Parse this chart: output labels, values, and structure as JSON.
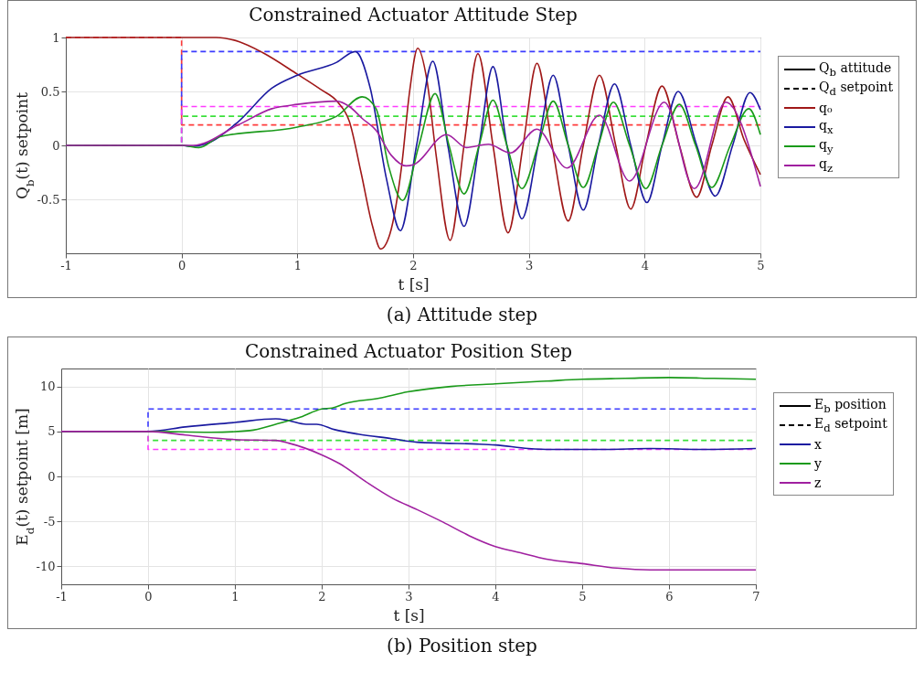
{
  "chart_data": [
    {
      "type": "line",
      "title": "Constrained Actuator Attitude Step",
      "xlabel": "t [s]",
      "ylabel": "Q$_{b}$(t) setpoint",
      "annotations": [
        "(a) Attitude step",
        "Q$_{b}$ attitude",
        "Q$_{d}$ setpoint"
      ],
      "xlim": [
        -1,
        5
      ],
      "xticks": [
        -1,
        0,
        1,
        2,
        3,
        4,
        5
      ],
      "ylim": [
        -1,
        1
      ],
      "yticks": [
        -0.5,
        0,
        0.5,
        1
      ],
      "grid": true,
      "legend": "right",
      "line_style": "solid",
      "series": [
        {
          "type": "step",
          "line_style": "dashed",
          "color": "#ff3b3b",
          "x": [
            -1,
            0,
            5
          ],
          "values": [
            1,
            0.19,
            0.19
          ]
        },
        {
          "type": "step",
          "line_style": "dashed",
          "color": "#3b3bff",
          "x": [
            -1,
            0,
            5
          ],
          "values": [
            0,
            0.87,
            0.87
          ]
        },
        {
          "type": "step",
          "line_style": "dashed",
          "color": "#3be03b",
          "x": [
            -1,
            0,
            5
          ],
          "values": [
            0,
            0.27,
            0.27
          ]
        },
        {
          "type": "step",
          "line_style": "dashed",
          "color": "#ff3bff",
          "x": [
            -1,
            0,
            5
          ],
          "values": [
            0,
            0.36,
            0.36
          ]
        },
        {
          "name": "q₀",
          "color": "#a01818",
          "x": [
            -1,
            0,
            0.3,
            0.5,
            0.7,
            1.0,
            1.2,
            1.35,
            1.45,
            1.55,
            1.65,
            1.72,
            1.8,
            1.9,
            1.97,
            2.04,
            2.12,
            2.2,
            2.32,
            2.44,
            2.56,
            2.69,
            2.82,
            2.95,
            3.07,
            3.2,
            3.34,
            3.47,
            3.61,
            3.75,
            3.88,
            4.01,
            4.15,
            4.3,
            4.45,
            4.58,
            4.72,
            4.86,
            5
          ],
          "values": [
            1,
            1,
            1,
            0.96,
            0.86,
            0.66,
            0.52,
            0.4,
            0.22,
            -0.25,
            -0.75,
            -0.96,
            -0.82,
            -0.2,
            0.5,
            0.9,
            0.6,
            -0.1,
            -0.88,
            0,
            0.85,
            0,
            -0.81,
            0,
            0.76,
            0,
            -0.7,
            0,
            0.65,
            0,
            -0.59,
            0,
            0.55,
            0,
            -0.48,
            0,
            0.45,
            0.05,
            -0.27
          ]
        },
        {
          "name": "q$_{x}$",
          "color": "#1a1aa0",
          "x": [
            -1,
            0,
            0.1,
            0.2,
            0.49,
            0.78,
            1.0,
            1.34,
            1.5,
            1.63,
            1.77,
            1.89,
            2.03,
            2.17,
            2.3,
            2.44,
            2.57,
            2.69,
            2.81,
            2.94,
            3.08,
            3.21,
            3.34,
            3.47,
            3.6,
            3.74,
            3.88,
            4.02,
            4.15,
            4.29,
            4.45,
            4.61,
            4.76,
            4.91,
            5
          ],
          "values": [
            0,
            0,
            -0.01,
            0.01,
            0.22,
            0.53,
            0.65,
            0.77,
            0.87,
            0.53,
            -0.31,
            -0.79,
            0,
            0.78,
            0,
            -0.75,
            0,
            0.73,
            0,
            -0.68,
            0,
            0.65,
            0,
            -0.6,
            0,
            0.57,
            0,
            -0.53,
            0,
            0.5,
            0,
            -0.47,
            0,
            0.49,
            0.33
          ]
        },
        {
          "name": "q$_{y}$",
          "color": "#1a9a1a",
          "x": [
            -1,
            0,
            0.15,
            0.33,
            1.0,
            1.34,
            1.56,
            1.68,
            1.79,
            1.91,
            2.05,
            2.19,
            2.31,
            2.44,
            2.57,
            2.69,
            2.81,
            2.94,
            3.08,
            3.21,
            3.34,
            3.47,
            3.6,
            3.73,
            3.87,
            4.01,
            4.15,
            4.3,
            4.44,
            4.58,
            4.74,
            4.9,
            5
          ],
          "values": [
            0,
            0,
            -0.02,
            0.08,
            0.17,
            0.27,
            0.45,
            0.34,
            -0.2,
            -0.51,
            0,
            0.48,
            0,
            -0.45,
            0,
            0.42,
            0,
            -0.4,
            0,
            0.41,
            0,
            -0.39,
            0,
            0.4,
            0,
            -0.4,
            0,
            0.38,
            0,
            -0.39,
            0,
            0.34,
            0.1
          ]
        },
        {
          "name": "q$_{z}$",
          "color": "#a020a0",
          "x": [
            -1,
            0,
            0.1,
            0.49,
            0.78,
            1.0,
            1.34,
            1.45,
            1.56,
            1.68,
            1.81,
            1.94,
            2.0,
            2.29,
            2.46,
            2.65,
            2.84,
            3.07,
            3.33,
            3.61,
            3.87,
            4.17,
            4.43,
            4.7,
            5
          ],
          "values": [
            0,
            0,
            0,
            0.19,
            0.34,
            0.38,
            0.41,
            0.36,
            0.25,
            0.14,
            -0.09,
            -0.19,
            -0.18,
            0.1,
            -0.02,
            0.01,
            -0.07,
            0.15,
            -0.21,
            0.28,
            -0.33,
            0.4,
            -0.4,
            0.4,
            -0.38
          ]
        }
      ]
    },
    {
      "type": "line",
      "title": "Constrained Actuator Position Step",
      "xlabel": "t [s]",
      "ylabel": "E$_{d}$(t) setpoint [m]",
      "annotations": [
        "(b) Position step",
        "E$_{b}$ position",
        "E$_{d}$ setpoint"
      ],
      "xlim": [
        -1,
        7
      ],
      "xticks": [
        -1,
        0,
        1,
        2,
        3,
        4,
        5,
        6,
        7
      ],
      "ylim": [
        -12,
        12
      ],
      "yticks": [
        -10,
        -5,
        0,
        5,
        10
      ],
      "grid": true,
      "legend": "right",
      "line_style": "solid",
      "series": [
        {
          "type": "step",
          "line_style": "dashed",
          "color": "#3b3bff",
          "x": [
            -1,
            0,
            7
          ],
          "values": [
            5,
            7.5,
            7.5
          ]
        },
        {
          "type": "step",
          "line_style": "dashed",
          "color": "#3be03b",
          "x": [
            -1,
            0,
            7
          ],
          "values": [
            5,
            4,
            4
          ]
        },
        {
          "type": "step",
          "line_style": "dashed",
          "color": "#ff3bff",
          "x": [
            -1,
            0,
            7
          ],
          "values": [
            5,
            3,
            3
          ]
        },
        {
          "name": "x",
          "color": "#1a1aa0",
          "x": [
            -1,
            0,
            0.43,
            1.0,
            1.47,
            1.62,
            1.82,
            1.94,
            2.15,
            2.42,
            2.81,
            3.1,
            3.4,
            3.79,
            4.0,
            4.38,
            4.65,
            4.98,
            5.27,
            5.78,
            6.4,
            7
          ],
          "values": [
            5,
            5,
            5.5,
            6,
            6.4,
            6.2,
            5.8,
            5.8,
            5.2,
            4.7,
            4.2,
            3.8,
            3.7,
            3.6,
            3.5,
            3.1,
            3,
            3,
            3,
            3.1,
            3,
            3.1
          ]
        },
        {
          "name": "y",
          "color": "#1a9a1a",
          "x": [
            -1,
            0,
            0.72,
            1.17,
            1.47,
            1.76,
            2.0,
            2.12,
            2.27,
            2.66,
            2.99,
            3.49,
            4.0,
            4.59,
            5.0,
            5.49,
            6.0,
            6.52,
            7
          ],
          "values": [
            5,
            5,
            4.9,
            5.1,
            5.8,
            6.6,
            7.5,
            7.6,
            8.1,
            8.7,
            9.4,
            10,
            10.3,
            10.6,
            10.8,
            10.9,
            11,
            10.9,
            10.8
          ]
        },
        {
          "name": "z",
          "color": "#a020a0",
          "x": [
            -1,
            0,
            0.43,
            1.0,
            1.47,
            1.62,
            2.0,
            2.21,
            2.51,
            2.81,
            3.1,
            3.4,
            3.7,
            4.0,
            4.29,
            4.59,
            5.0,
            5.4,
            5.78,
            6.0,
            7
          ],
          "values": [
            5,
            5,
            4.6,
            4.1,
            4,
            3.7,
            2.4,
            1.4,
            -0.6,
            -2.4,
            -3.7,
            -5.1,
            -6.6,
            -7.8,
            -8.5,
            -9.2,
            -9.7,
            -10.2,
            -10.4,
            -10.4,
            -10.4
          ]
        }
      ]
    }
  ]
}
